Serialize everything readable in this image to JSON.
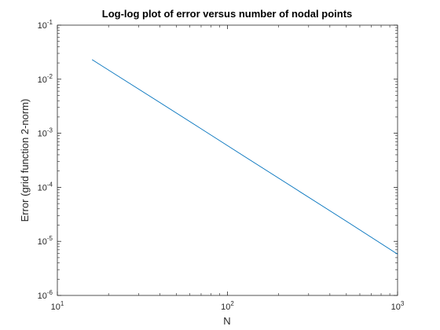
{
  "chart_data": {
    "type": "line",
    "title": "Log-log plot of error versus number of nodal points",
    "xlabel": "N",
    "ylabel": "Error (grid function 2-norm)",
    "xscale": "log",
    "yscale": "log",
    "xlim": [
      10,
      1000
    ],
    "ylim": [
      1e-06,
      0.1
    ],
    "grid": false,
    "x_ticks": [
      {
        "value": 10,
        "base": "10",
        "exp": "1"
      },
      {
        "value": 100,
        "base": "10",
        "exp": "2"
      },
      {
        "value": 1000,
        "base": "10",
        "exp": "3"
      }
    ],
    "y_ticks": [
      {
        "value": 0.1,
        "base": "10",
        "exp": "-1"
      },
      {
        "value": 0.01,
        "base": "10",
        "exp": "-2"
      },
      {
        "value": 0.001,
        "base": "10",
        "exp": "-3"
      },
      {
        "value": 0.0001,
        "base": "10",
        "exp": "-4"
      },
      {
        "value": 1e-05,
        "base": "10",
        "exp": "-5"
      },
      {
        "value": 1e-06,
        "base": "10",
        "exp": "-6"
      }
    ],
    "series": [
      {
        "color": "#0072BD",
        "x": [
          16,
          32,
          64,
          128,
          256,
          512,
          1000
        ],
        "y": [
          0.023,
          0.0058,
          0.00145,
          0.00036,
          9e-05,
          2.25e-05,
          5.8e-06
        ]
      }
    ]
  }
}
